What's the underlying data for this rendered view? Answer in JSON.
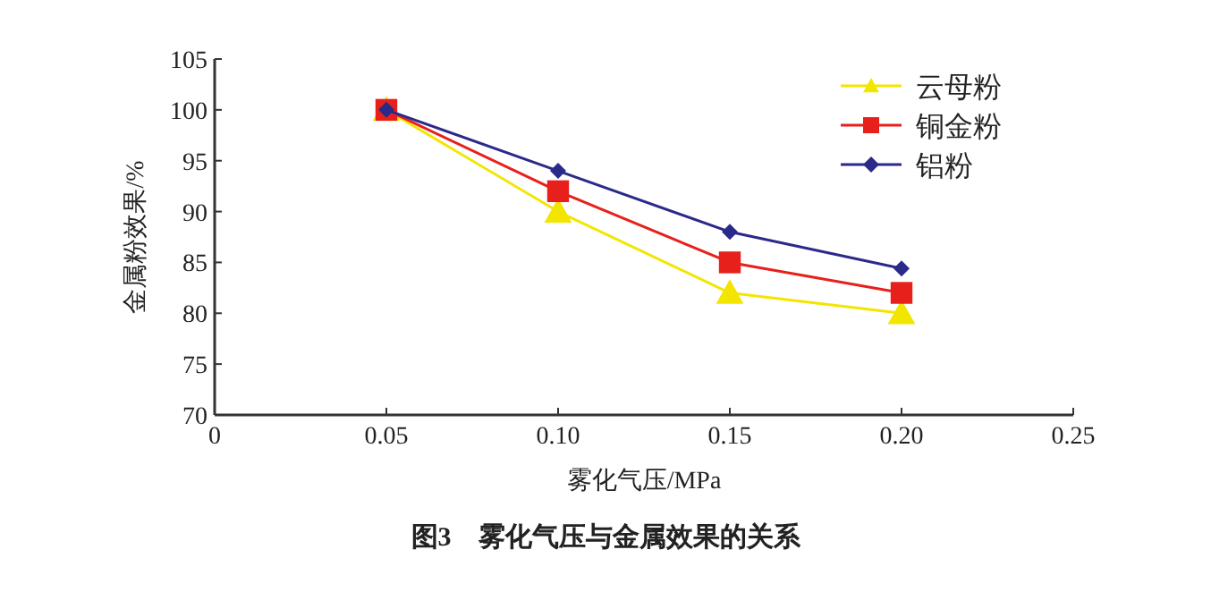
{
  "chart_data": {
    "type": "line",
    "title": "图3　雾化气压与金属效果的关系",
    "xlabel": "雾化气压/MPa",
    "ylabel": "金属粉效果/%",
    "x": [
      0.05,
      0.1,
      0.15,
      0.2
    ],
    "series": [
      {
        "name": "云母粉",
        "color": "#f2e600",
        "marker": "triangle",
        "values": [
          100,
          90,
          82,
          80
        ]
      },
      {
        "name": "铜金粉",
        "color": "#e8201c",
        "marker": "square",
        "values": [
          100,
          92,
          85,
          82
        ]
      },
      {
        "name": "铝粉",
        "color": "#2a2a8a",
        "marker": "diamond",
        "values": [
          100,
          94,
          88,
          84.4
        ]
      }
    ],
    "xlim": [
      0,
      0.25
    ],
    "xticks": [
      0,
      {
        "value": 0.05,
        "label": "0.05"
      },
      {
        "value": 0.1,
        "label": "0.10"
      },
      {
        "value": 0.15,
        "label": "0.15"
      },
      {
        "value": 0.2,
        "label": "0.20"
      },
      {
        "value": 0.25,
        "label": "0.25"
      }
    ],
    "ylim": [
      70,
      105
    ],
    "yticks": [
      70,
      75,
      80,
      85,
      90,
      95,
      100,
      105
    ],
    "grid": false,
    "legend": "top right",
    "line_style": "solid"
  }
}
